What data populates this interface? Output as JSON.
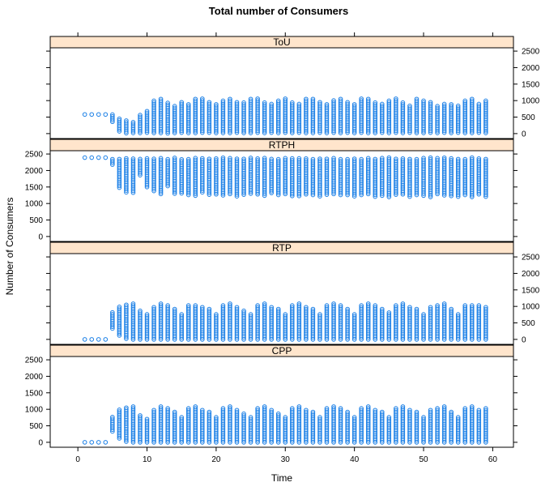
{
  "chart_data": {
    "type": "scatter",
    "title": "Total number of Consumers",
    "xlabel": "Time",
    "ylabel": "Number of Consumers",
    "xlim": [
      -4,
      63
    ],
    "ylim": [
      -150,
      2600
    ],
    "x_ticks": [
      0,
      10,
      20,
      30,
      40,
      50,
      60
    ],
    "y_ticks": [
      0,
      500,
      1000,
      1500,
      2000,
      2500
    ],
    "grid": false,
    "layout": "four stacked panels, bottom to top: CPP, RTP, RTPH, ToU",
    "panels": [
      {
        "name": "ToU",
        "x": [
          1,
          2,
          3,
          4,
          5,
          6,
          7,
          8,
          9,
          10,
          11,
          12,
          13,
          14,
          15,
          16,
          17,
          18,
          19,
          20,
          21,
          22,
          23,
          24,
          25,
          26,
          27,
          28,
          29,
          30,
          31,
          32,
          33,
          34,
          35,
          36,
          37,
          38,
          39,
          40,
          41,
          42,
          43,
          44,
          45,
          46,
          47,
          48,
          49,
          50,
          51,
          52,
          53,
          54,
          55,
          56,
          57,
          58,
          59
        ],
        "min": [
          580,
          580,
          580,
          580,
          360,
          70,
          15,
          20,
          20,
          30,
          20,
          20,
          10,
          20,
          30,
          20,
          20,
          30,
          30,
          20,
          20,
          20,
          30,
          20,
          20,
          30,
          20,
          30,
          20,
          30,
          20,
          30,
          20,
          20,
          30,
          20,
          30,
          20,
          30,
          20,
          30,
          20,
          20,
          30,
          20,
          30,
          20,
          30,
          20,
          20,
          30,
          20,
          30,
          20,
          30,
          20,
          20,
          30,
          20
        ],
        "max": [
          580,
          580,
          580,
          580,
          580,
          460,
          430,
          380,
          580,
          720,
          1020,
          1080,
          940,
          850,
          1000,
          920,
          1060,
          1080,
          980,
          900,
          1020,
          1080,
          1000,
          950,
          1050,
          1100,
          980,
          900,
          1040,
          1060,
          980,
          920,
          1050,
          1060,
          980,
          920,
          1040,
          1080,
          980,
          900,
          1060,
          1080,
          990,
          900,
          1020,
          1060,
          960,
          880,
          1060,
          1040,
          960,
          880,
          920,
          900,
          860,
          1000,
          1060,
          940,
          1040
        ]
      },
      {
        "name": "RTPH",
        "x": [
          1,
          2,
          3,
          4,
          5,
          6,
          7,
          8,
          9,
          10,
          11,
          12,
          13,
          14,
          15,
          16,
          17,
          18,
          19,
          20,
          21,
          22,
          23,
          24,
          25,
          26,
          27,
          28,
          29,
          30,
          31,
          32,
          33,
          34,
          35,
          36,
          37,
          38,
          39,
          40,
          41,
          42,
          43,
          44,
          45,
          46,
          47,
          48,
          49,
          50,
          51,
          52,
          53,
          54,
          55,
          56,
          57,
          58,
          59
        ],
        "min": [
          2390,
          2390,
          2390,
          2390,
          2180,
          1480,
          1340,
          1330,
          1860,
          1500,
          1380,
          1290,
          1530,
          1300,
          1310,
          1260,
          1240,
          1340,
          1270,
          1280,
          1250,
          1290,
          1220,
          1270,
          1300,
          1280,
          1240,
          1320,
          1260,
          1290,
          1230,
          1230,
          1280,
          1260,
          1220,
          1270,
          1290,
          1260,
          1260,
          1220,
          1260,
          1290,
          1210,
          1240,
          1200,
          1270,
          1280,
          1210,
          1260,
          1240,
          1200,
          1290,
          1250,
          1230,
          1210,
          1260,
          1200,
          1280,
          1210
        ],
        "max": [
          2390,
          2390,
          2390,
          2390,
          2390,
          2390,
          2390,
          2390,
          2390,
          2390,
          2390,
          2390,
          2390,
          2390,
          2390,
          2390,
          2390,
          2390,
          2390,
          2390,
          2390,
          2390,
          2390,
          2390,
          2390,
          2390,
          2390,
          2390,
          2390,
          2390,
          2390,
          2390,
          2390,
          2390,
          2390,
          2390,
          2390,
          2390,
          2390,
          2390,
          2390,
          2390,
          2390,
          2390,
          2390,
          2390,
          2390,
          2390,
          2390,
          2390,
          2390,
          2390,
          2390,
          2390,
          2390,
          2390,
          2390,
          2390,
          2390
        ]
      },
      {
        "name": "RTP",
        "x": [
          1,
          2,
          3,
          4,
          5,
          6,
          7,
          8,
          9,
          10,
          11,
          12,
          13,
          14,
          15,
          16,
          17,
          18,
          19,
          20,
          21,
          22,
          23,
          24,
          25,
          26,
          27,
          28,
          29,
          30,
          31,
          32,
          33,
          34,
          35,
          36,
          37,
          38,
          39,
          40,
          41,
          42,
          43,
          44,
          45,
          46,
          47,
          48,
          49,
          50,
          51,
          52,
          53,
          54,
          55,
          56,
          57,
          58,
          59
        ],
        "min": [
          0,
          0,
          0,
          0,
          330,
          120,
          20,
          0,
          0,
          0,
          0,
          0,
          0,
          0,
          0,
          0,
          0,
          0,
          0,
          0,
          0,
          0,
          0,
          0,
          0,
          0,
          0,
          0,
          0,
          0,
          0,
          0,
          0,
          0,
          0,
          0,
          0,
          0,
          0,
          0,
          0,
          0,
          0,
          0,
          0,
          0,
          0,
          0,
          0,
          0,
          0,
          0,
          0,
          0,
          0,
          0,
          0,
          0,
          0
        ],
        "max": [
          0,
          0,
          0,
          0,
          820,
          1000,
          1100,
          1130,
          880,
          800,
          1000,
          1120,
          1080,
          960,
          800,
          1060,
          1080,
          1000,
          940,
          800,
          1050,
          1110,
          980,
          870,
          800,
          1050,
          1100,
          1000,
          940,
          800,
          1060,
          1110,
          1000,
          940,
          790,
          1030,
          1100,
          1030,
          930,
          800,
          1060,
          1100,
          1040,
          920,
          820,
          1050,
          1110,
          1000,
          940,
          800,
          980,
          1070,
          1120,
          960,
          800,
          1070,
          1080,
          1040,
          1020
        ]
      },
      {
        "name": "CPP",
        "x": [
          1,
          2,
          3,
          4,
          5,
          6,
          7,
          8,
          9,
          10,
          11,
          12,
          13,
          14,
          15,
          16,
          17,
          18,
          19,
          20,
          21,
          22,
          23,
          24,
          25,
          26,
          27,
          28,
          29,
          30,
          31,
          32,
          33,
          34,
          35,
          36,
          37,
          38,
          39,
          40,
          41,
          42,
          43,
          44,
          45,
          46,
          47,
          48,
          49,
          50,
          51,
          52,
          53,
          54,
          55,
          56,
          57,
          58,
          59
        ],
        "min": [
          0,
          0,
          0,
          0,
          330,
          120,
          20,
          0,
          0,
          0,
          0,
          0,
          0,
          0,
          0,
          0,
          0,
          0,
          0,
          0,
          0,
          0,
          0,
          0,
          0,
          0,
          0,
          0,
          0,
          0,
          0,
          0,
          0,
          0,
          0,
          0,
          0,
          0,
          0,
          0,
          0,
          0,
          0,
          0,
          0,
          0,
          0,
          0,
          0,
          0,
          0,
          0,
          0,
          0,
          0,
          0,
          0,
          0,
          0
        ],
        "max": [
          0,
          0,
          0,
          0,
          800,
          1000,
          1080,
          1130,
          860,
          720,
          980,
          1120,
          1060,
          960,
          780,
          1030,
          1130,
          980,
          920,
          800,
          1060,
          1130,
          980,
          880,
          790,
          1050,
          1120,
          990,
          900,
          790,
          1060,
          1120,
          1000,
          920,
          780,
          1040,
          1100,
          1040,
          940,
          790,
          1060,
          1120,
          980,
          920,
          790,
          1040,
          1110,
          1000,
          920,
          790,
          990,
          1060,
          1120,
          940,
          760,
          1060,
          1100,
          1020,
          1060
        ]
      }
    ]
  }
}
